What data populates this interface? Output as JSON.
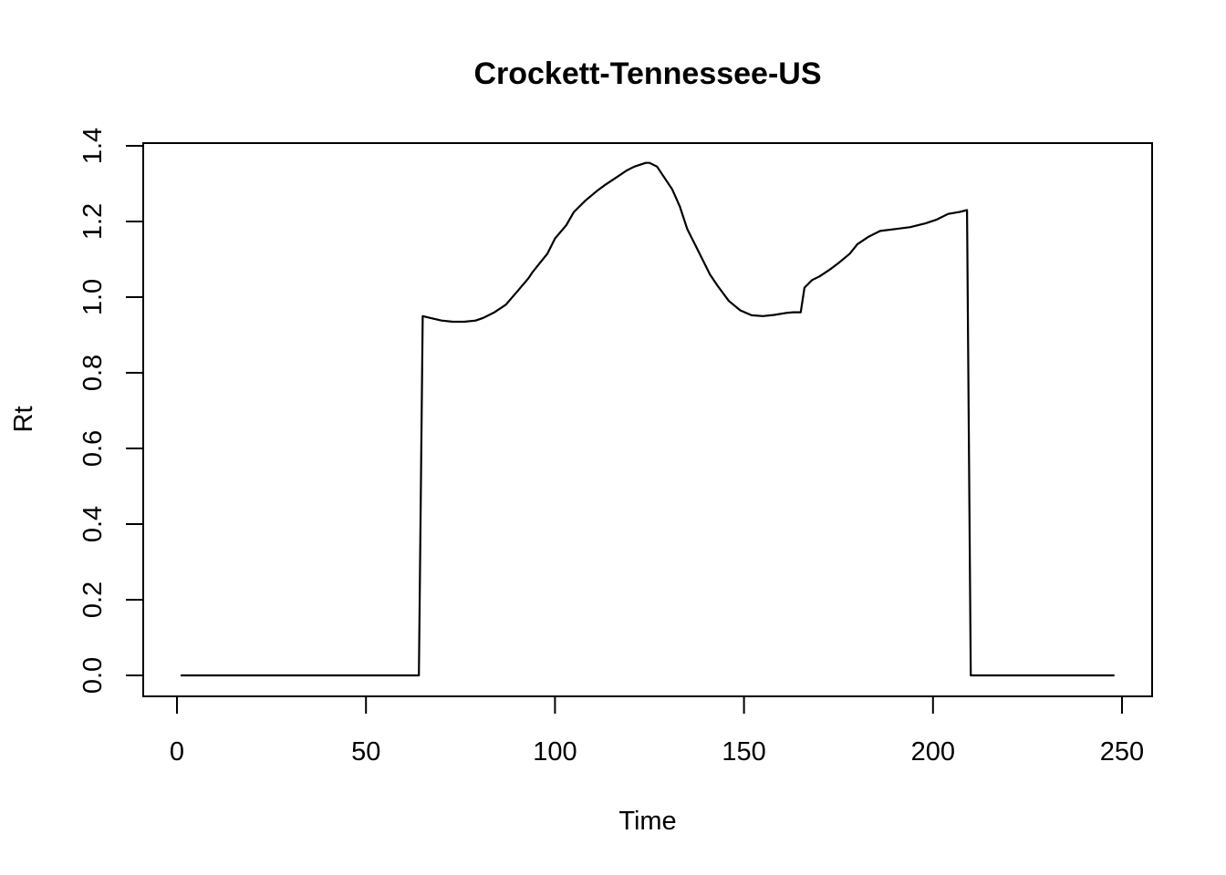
{
  "chart_data": {
    "type": "line",
    "title": "Crockett-Tennessee-US",
    "xlabel": "Time",
    "ylabel": "Rt",
    "xlim": [
      0,
      250
    ],
    "ylim": [
      0,
      1.4
    ],
    "xticks": [
      0,
      50,
      100,
      150,
      200,
      250
    ],
    "xtick_labels": [
      "0",
      "50",
      "100",
      "150",
      "200",
      "250"
    ],
    "yticks": [
      0,
      0.2,
      0.4,
      0.6,
      0.8,
      1.0,
      1.2,
      1.4
    ],
    "ytick_labels": [
      "0.0",
      "0.2",
      "0.4",
      "0.6",
      "0.8",
      "1.0",
      "1.2",
      "1.4"
    ],
    "grid": false,
    "legend": "none",
    "color": "#000000",
    "series": [
      {
        "x": [
          1,
          64,
          65,
          67,
          70,
          73,
          76,
          79,
          81,
          84,
          87,
          90,
          93,
          94,
          96,
          98,
          100,
          103,
          105,
          108,
          111,
          113,
          116,
          119,
          121,
          124,
          125,
          127,
          129,
          131,
          133,
          135,
          138,
          141,
          143,
          146,
          149,
          152,
          155,
          158,
          161,
          163,
          165,
          166,
          168,
          170,
          173,
          175,
          178,
          180,
          183,
          186,
          190,
          194,
          198,
          201,
          204,
          207,
          209,
          210,
          220,
          230,
          240,
          248
        ],
        "y": [
          0,
          0,
          0.95,
          0.945,
          0.938,
          0.935,
          0.935,
          0.938,
          0.945,
          0.96,
          0.98,
          1.015,
          1.05,
          1.065,
          1.09,
          1.115,
          1.155,
          1.19,
          1.225,
          1.255,
          1.28,
          1.295,
          1.315,
          1.335,
          1.345,
          1.355,
          1.355,
          1.345,
          1.315,
          1.285,
          1.24,
          1.18,
          1.12,
          1.06,
          1.03,
          0.99,
          0.965,
          0.952,
          0.95,
          0.953,
          0.958,
          0.96,
          0.96,
          1.025,
          1.045,
          1.055,
          1.075,
          1.09,
          1.115,
          1.14,
          1.16,
          1.175,
          1.18,
          1.185,
          1.195,
          1.205,
          1.22,
          1.225,
          1.23,
          0,
          0,
          0,
          0,
          0
        ]
      }
    ]
  }
}
